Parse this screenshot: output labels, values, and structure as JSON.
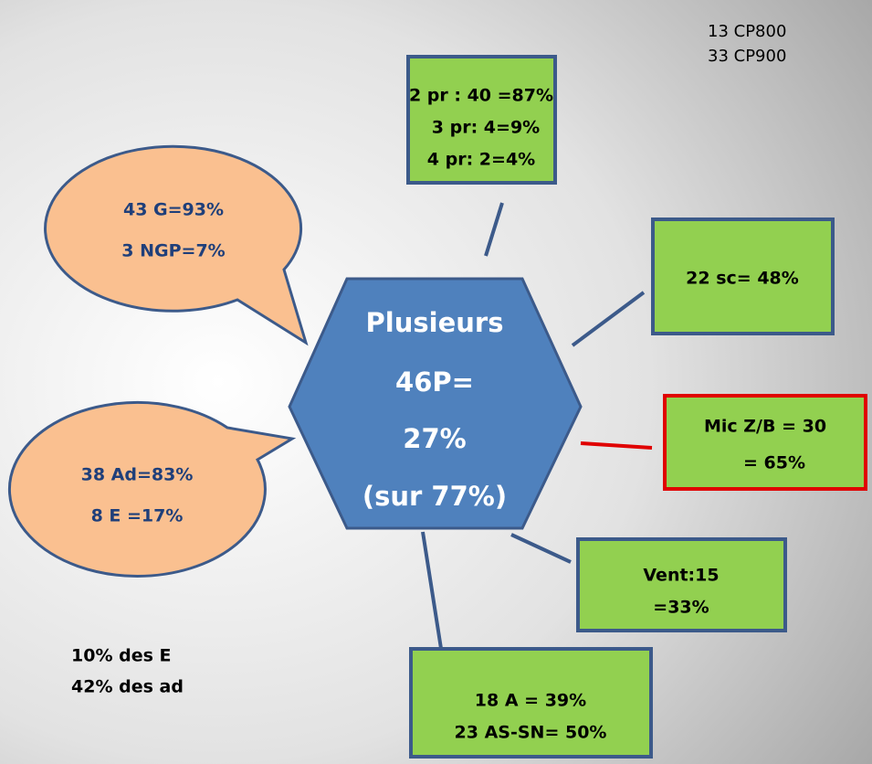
{
  "top_note": [
    "13 CP800",
    "33 CP900"
  ],
  "center": {
    "lines": [
      "Plusieurs",
      "46P=",
      "27%",
      "(sur 77%)"
    ]
  },
  "boxes": [
    {
      "lines": [
        "2 pr : 40 =87%",
        "3 pr: 4=9%",
        "4 pr: 2=4%"
      ]
    },
    {
      "lines": [
        "22 sc= 48%"
      ]
    },
    {
      "lines": [
        "Mic Z/B = 30",
        "= 65%"
      ]
    },
    {
      "lines": [
        "Vent:15",
        "=33%"
      ]
    },
    {
      "lines": [
        "18 A = 39%",
        "23 AS-SN= 50%"
      ]
    }
  ],
  "bubbles": [
    {
      "lines": [
        "43 G=93%",
        "3 NGP=7%"
      ]
    },
    {
      "lines": [
        "38 Ad=83%",
        "8 E =17%"
      ]
    }
  ],
  "bottom_note": [
    "10% des E",
    "42% des ad"
  ]
}
